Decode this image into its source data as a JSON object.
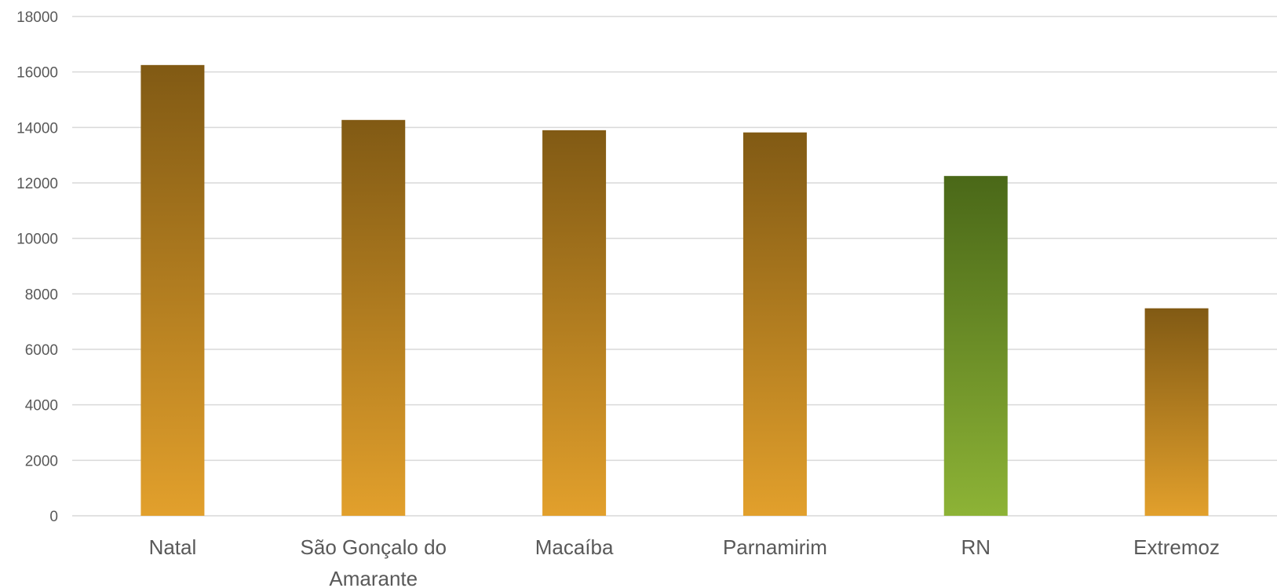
{
  "chart_data": {
    "type": "bar",
    "categories": [
      "Natal",
      "São Gonçalo do Amarante",
      "Macaíba",
      "Parnamirim",
      "RN",
      "Extremoz"
    ],
    "category_lines": [
      [
        "Natal"
      ],
      [
        "São Gonçalo do",
        "Amarante"
      ],
      [
        "Macaíba"
      ],
      [
        "Parnamirim"
      ],
      [
        "RN"
      ],
      [
        "Extremoz"
      ]
    ],
    "values": [
      16250,
      14270,
      13900,
      13820,
      12250,
      7480
    ],
    "ylim": [
      0,
      18000
    ],
    "yticks": [
      0,
      2000,
      4000,
      6000,
      8000,
      10000,
      12000,
      14000,
      16000,
      18000
    ],
    "grid": true,
    "legend": "none",
    "title": "",
    "xlabel": "",
    "ylabel": "",
    "colors": {
      "default_bar_top": "#815a14",
      "default_bar_bottom": "#e2a02c",
      "highlight_bar_top": "#4a6818",
      "highlight_bar_bottom": "#8db336",
      "highlight_category": "RN",
      "grid": "#d9d9d9",
      "text": "#595959"
    }
  }
}
